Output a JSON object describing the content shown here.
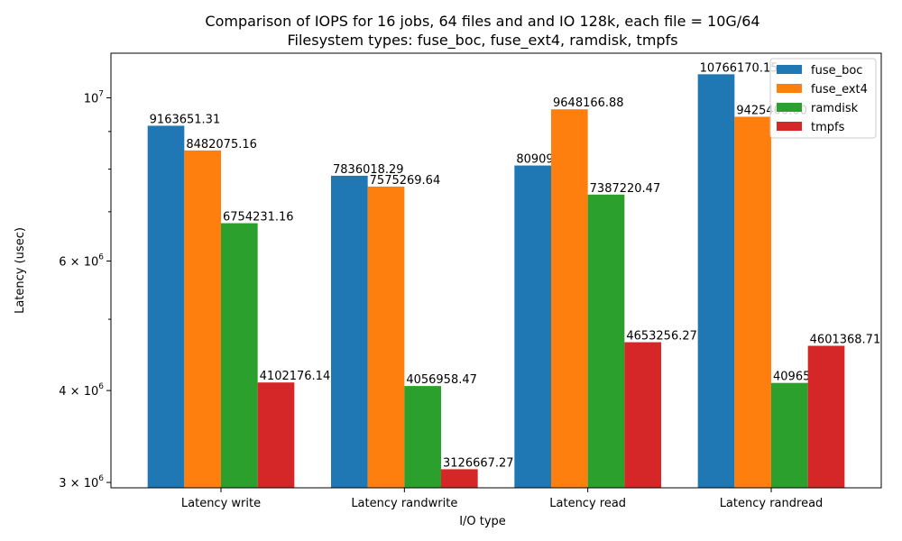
{
  "chart_data": {
    "type": "bar",
    "title": "Comparison of IOPS for 16 jobs, 64 files and  and IO 128k, each file = 10G/64",
    "subtitle": "Filesystem types: fuse_boc, fuse_ext4, ramdisk, tmpfs",
    "xlabel": "I/O type",
    "ylabel": "Latency (usec)",
    "yscale": "log",
    "ylim": [
      2950000,
      11500000
    ],
    "categories": [
      "Latency write",
      "Latency randwrite",
      "Latency read",
      "Latency randread"
    ],
    "series": [
      {
        "name": "fuse_boc",
        "color": "#1f77b4",
        "values": [
          9163651.31,
          7836018.29,
          8090958.21,
          10766170.15
        ],
        "labels": [
          "9163651.31",
          "7836018.29",
          "8090958.21",
          "10766170.15"
        ]
      },
      {
        "name": "fuse_ext4",
        "color": "#ff7f0e",
        "values": [
          8482075.16,
          7575269.64,
          9648166.88,
          9425400.0
        ],
        "labels": [
          "8482075.16",
          "7575269.64",
          "9648166.88",
          "9425400.00"
        ]
      },
      {
        "name": "ramdisk",
        "color": "#2ca02c",
        "values": [
          6754231.16,
          4056958.47,
          7387220.47,
          4096520.35
        ],
        "labels": [
          "6754231.16",
          "4056958.47",
          "7387220.47",
          "4096520.35"
        ]
      },
      {
        "name": "tmpfs",
        "color": "#d62728",
        "values": [
          4102176.14,
          3126667.27,
          4653256.27,
          4601368.71
        ],
        "labels": [
          "4102176.14",
          "3126667.27",
          "4653256.27",
          "4601368.71"
        ]
      }
    ],
    "yticks": [
      {
        "value": 10000000,
        "base": "10",
        "exp": "7",
        "mult": ""
      },
      {
        "value": 6000000,
        "base": "10",
        "exp": "6",
        "mult": "6 × "
      },
      {
        "value": 4000000,
        "base": "10",
        "exp": "6",
        "mult": "4 × "
      },
      {
        "value": 3000000,
        "base": "10",
        "exp": "6",
        "mult": "3 × "
      }
    ],
    "minor_yticks": [
      5000000,
      7000000,
      8000000,
      9000000
    ],
    "legend_position": "top-right",
    "grid": false
  }
}
